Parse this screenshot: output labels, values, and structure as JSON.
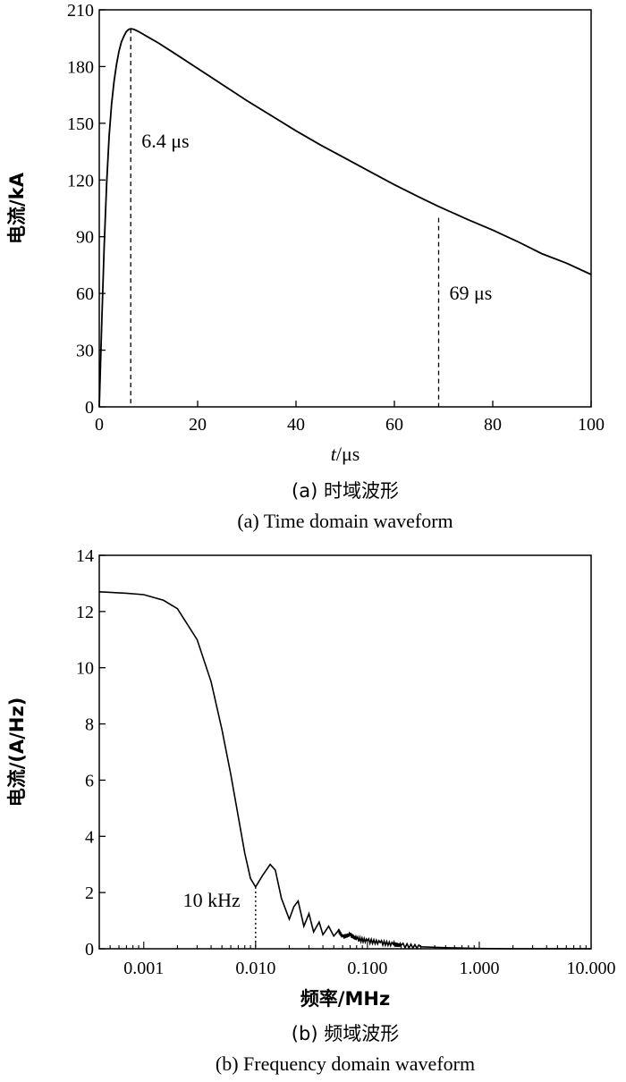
{
  "chart_data": [
    {
      "type": "line",
      "caption_cn": "(a) 时域波形",
      "caption_en": "(a) Time domain waveform",
      "xlabel_italic": "t",
      "xlabel_unit": "/μs",
      "ylabel": "电流/kA",
      "xlim": [
        0,
        100
      ],
      "ylim": [
        0,
        210
      ],
      "xticks": [
        0,
        20,
        40,
        60,
        80,
        100
      ],
      "yticks": [
        0,
        30,
        60,
        90,
        120,
        150,
        180,
        210
      ],
      "grid": false,
      "series": [
        {
          "x": [
            0,
            0.5,
            1,
            1.5,
            2,
            2.5,
            3,
            3.5,
            4,
            4.5,
            5,
            5.5,
            6,
            6.4,
            7,
            8,
            9,
            10,
            12,
            15,
            20,
            25,
            30,
            35,
            40,
            45,
            50,
            55,
            60,
            65,
            69,
            75,
            80,
            85,
            90,
            95,
            100
          ],
          "y": [
            0,
            44,
            85,
            118,
            143,
            160,
            172,
            181,
            188,
            193,
            196,
            198.5,
            199.7,
            200,
            199.7,
            198.5,
            197,
            195.5,
            192.5,
            187.5,
            179,
            170.5,
            162,
            154,
            146,
            138.5,
            131.5,
            124.5,
            117.5,
            111,
            106,
            99,
            93.5,
            87.5,
            81,
            76,
            70
          ]
        }
      ],
      "annotations": [
        {
          "x": 6.4,
          "y": 200,
          "text": "6.4 μs",
          "style": "dashed-vertical"
        },
        {
          "x": 69,
          "y": 100,
          "text": "69 μs",
          "style": "dashed-vertical"
        }
      ]
    },
    {
      "type": "line",
      "caption_cn": "(b) 频域波形",
      "caption_en": "(b) Frequency domain waveform",
      "xlabel": "频率/MHz",
      "ylabel": "电流/(A/Hz)",
      "xscale": "log",
      "xlim": [
        0.0004,
        10
      ],
      "ylim": [
        0,
        14
      ],
      "xticks": [
        0.001,
        0.01,
        0.1,
        1,
        10
      ],
      "xtick_labels": [
        "0.001",
        "0.010",
        "0.100",
        "1.000",
        "10.000"
      ],
      "yticks": [
        0,
        2,
        4,
        6,
        8,
        10,
        12,
        14
      ],
      "grid": false,
      "series": [
        {
          "x": [
            0.0004,
            0.0007,
            0.001,
            0.0015,
            0.002,
            0.003,
            0.004,
            0.005,
            0.006,
            0.007,
            0.008,
            0.009,
            0.01,
            0.0115,
            0.0135,
            0.015,
            0.017,
            0.02,
            0.022,
            0.024,
            0.027,
            0.03,
            0.033,
            0.037,
            0.04,
            0.045,
            0.05,
            0.055,
            0.06,
            0.07,
            0.08,
            0.1,
            0.13,
            0.17,
            0.2,
            0.3,
            0.5,
            0.8,
            1,
            2,
            5,
            10
          ],
          "y": [
            12.7,
            12.65,
            12.6,
            12.4,
            12.1,
            11.0,
            9.5,
            7.8,
            6.2,
            4.7,
            3.4,
            2.5,
            2.2,
            2.6,
            3.0,
            2.8,
            1.8,
            1.05,
            1.5,
            1.7,
            0.8,
            1.25,
            0.6,
            0.95,
            0.5,
            0.8,
            0.45,
            0.65,
            0.42,
            0.5,
            0.35,
            0.28,
            0.22,
            0.16,
            0.12,
            0.07,
            0.04,
            0.02,
            0.01,
            0.0,
            0.0,
            0.0
          ]
        }
      ],
      "annotations": [
        {
          "x": 0.01,
          "y": 2.2,
          "text": "10 kHz",
          "style": "dotted-vertical"
        }
      ]
    }
  ]
}
